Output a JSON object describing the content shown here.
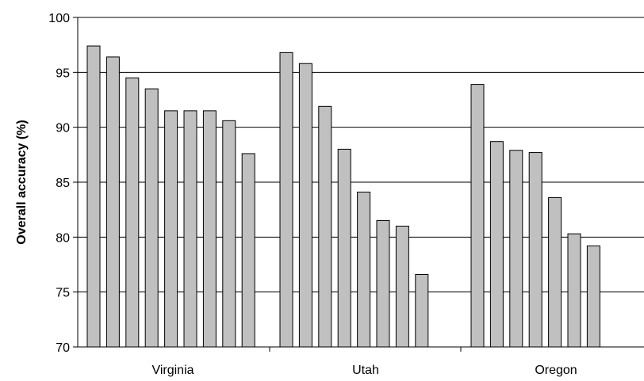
{
  "chart_data": {
    "type": "bar",
    "title": "",
    "xlabel": "",
    "ylabel": "Overall accuracy (%)",
    "ylim": [
      70,
      100
    ],
    "yticks": [
      70,
      75,
      80,
      85,
      90,
      95,
      100
    ],
    "grid": true,
    "colors": {
      "bar_fill": "#c0c0c0",
      "bar_stroke": "#000000",
      "grid": "#000000",
      "axis": "#000000"
    },
    "groups": [
      {
        "name": "Virginia",
        "values": [
          97.4,
          96.4,
          94.5,
          93.5,
          91.5,
          91.5,
          91.5,
          90.6,
          87.6
        ]
      },
      {
        "name": "Utah",
        "values": [
          96.8,
          95.8,
          91.9,
          88.0,
          84.1,
          81.5,
          81.0,
          76.6
        ]
      },
      {
        "name": "Oregon",
        "values": [
          93.9,
          88.7,
          87.9,
          87.7,
          83.6,
          80.3,
          79.2
        ]
      }
    ]
  }
}
